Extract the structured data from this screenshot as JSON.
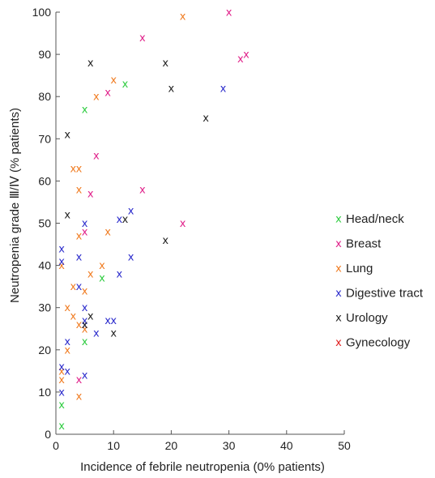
{
  "chart_data": {
    "type": "scatter",
    "title": "",
    "xlabel": "Incidence of febrile neutropenia (0% patients)",
    "ylabel": "Neutropenia grade Ⅲ/Ⅳ (% patients)",
    "xlim": [
      0,
      50
    ],
    "ylim": [
      0,
      100
    ],
    "xticks": [
      "0",
      "10",
      "20",
      "30",
      "40",
      "50"
    ],
    "yticks": [
      "0",
      "10",
      "20",
      "30",
      "40",
      "50",
      "60",
      "70",
      "80",
      "90",
      "100"
    ],
    "marker": "x",
    "legend_position": "right",
    "grid": false,
    "series": [
      {
        "name": "Head/neck",
        "color": "#2ecc40",
        "points": [
          [
            1,
            2
          ],
          [
            1,
            7
          ],
          [
            5,
            22
          ],
          [
            5,
            77
          ],
          [
            8,
            37
          ],
          [
            12,
            83
          ]
        ]
      },
      {
        "name": "Breast",
        "color": "#e0218a",
        "points": [
          [
            4,
            13
          ],
          [
            5,
            48
          ],
          [
            6,
            57
          ],
          [
            7,
            66
          ],
          [
            9,
            81
          ],
          [
            15,
            58
          ],
          [
            15,
            94
          ],
          [
            22,
            50
          ],
          [
            30,
            100
          ],
          [
            32,
            89
          ],
          [
            33,
            90
          ]
        ]
      },
      {
        "name": "Lung",
        "color": "#f07c22",
        "points": [
          [
            1,
            13
          ],
          [
            1,
            15
          ],
          [
            1,
            40
          ],
          [
            2,
            20
          ],
          [
            2,
            30
          ],
          [
            3,
            28
          ],
          [
            3,
            35
          ],
          [
            3,
            63
          ],
          [
            4,
            9
          ],
          [
            4,
            26
          ],
          [
            4,
            47
          ],
          [
            4,
            58
          ],
          [
            4,
            63
          ],
          [
            5,
            25
          ],
          [
            5,
            34
          ],
          [
            6,
            38
          ],
          [
            7,
            80
          ],
          [
            8,
            40
          ],
          [
            9,
            48
          ],
          [
            10,
            84
          ],
          [
            22,
            99
          ]
        ]
      },
      {
        "name": "Digestive tract",
        "color": "#2c2ccc",
        "points": [
          [
            1,
            10
          ],
          [
            1,
            16
          ],
          [
            1,
            41
          ],
          [
            1,
            44
          ],
          [
            2,
            15
          ],
          [
            2,
            22
          ],
          [
            4,
            35
          ],
          [
            4,
            42
          ],
          [
            5,
            14
          ],
          [
            5,
            26
          ],
          [
            5,
            27
          ],
          [
            5,
            30
          ],
          [
            5,
            50
          ],
          [
            7,
            24
          ],
          [
            9,
            27
          ],
          [
            10,
            27
          ],
          [
            11,
            38
          ],
          [
            11,
            51
          ],
          [
            13,
            42
          ],
          [
            13,
            53
          ],
          [
            29,
            82
          ]
        ]
      },
      {
        "name": "Urology",
        "color": "#222222",
        "points": [
          [
            2,
            52
          ],
          [
            2,
            71
          ],
          [
            5,
            26
          ],
          [
            6,
            28
          ],
          [
            6,
            88
          ],
          [
            10,
            24
          ],
          [
            12,
            51
          ],
          [
            19,
            46
          ],
          [
            19,
            88
          ],
          [
            20,
            82
          ],
          [
            26,
            75
          ]
        ]
      },
      {
        "name": "Gynecology",
        "color": "#e02020",
        "points": []
      }
    ]
  }
}
